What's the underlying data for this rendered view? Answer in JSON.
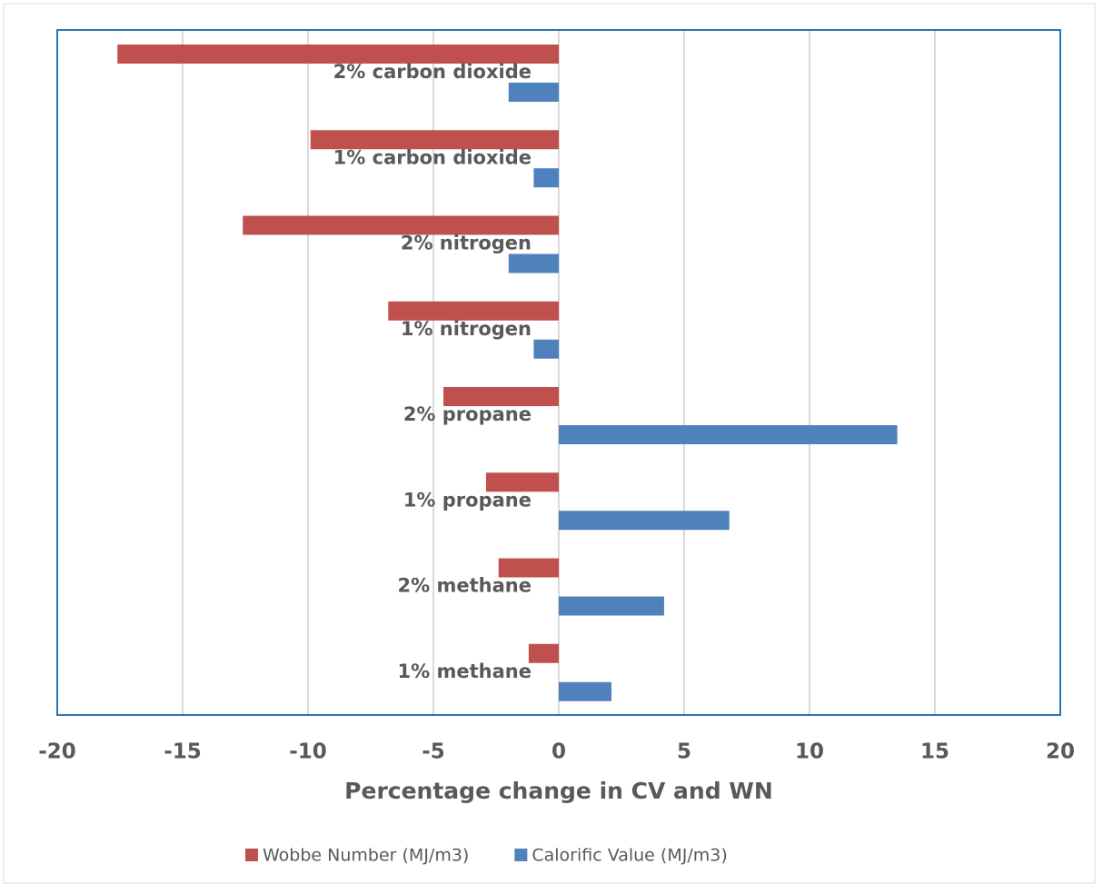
{
  "chart_data": {
    "type": "hbar",
    "xlabel": "Percentage change in CV and WN",
    "categories": [
      "2% carbon dioxide",
      "1% carbon dioxide",
      "2% nitrogen",
      "1% nitrogen",
      "2% propane",
      "1% propane",
      "2% methane",
      "1% methane"
    ],
    "series": [
      {
        "name": "Wobbe Number (MJ/m3)",
        "color": "#c0504d",
        "values": [
          -17.6,
          -9.9,
          -12.6,
          -6.8,
          -4.6,
          -2.9,
          -2.4,
          -1.2
        ]
      },
      {
        "name": "Calorific Value (MJ/m3)",
        "color": "#4f81bd",
        "values": [
          -2.0,
          -1.0,
          -2.0,
          -1.0,
          13.5,
          6.8,
          4.2,
          2.1
        ]
      }
    ],
    "xlim": [
      -20,
      20
    ],
    "xticks": [
      -20,
      -15,
      -10,
      -5,
      0,
      5,
      10,
      15,
      20
    ],
    "grid": true,
    "legend": "bottom"
  }
}
